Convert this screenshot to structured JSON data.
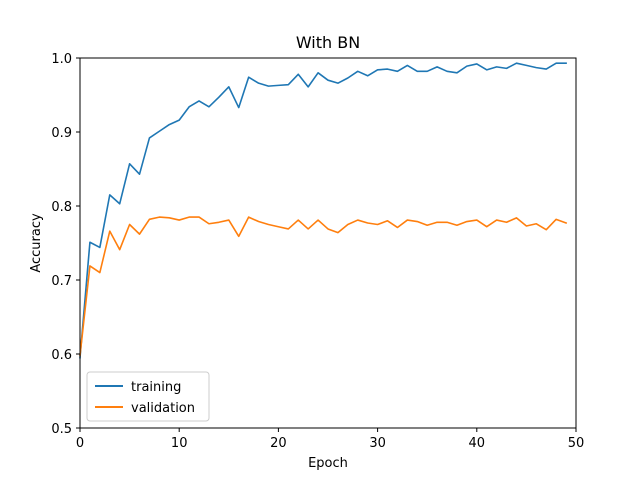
{
  "chart_data": {
    "type": "line",
    "title": "With BN",
    "xlabel": "Epoch",
    "ylabel": "Accuracy",
    "xlim": [
      0,
      50
    ],
    "ylim": [
      0.5,
      1.0
    ],
    "xticks": [
      0,
      10,
      20,
      30,
      40,
      50
    ],
    "yticks": [
      "0.5",
      "0.6",
      "0.7",
      "0.8",
      "0.9",
      "1.0"
    ],
    "grid": false,
    "legend_position": "lower-left",
    "x": [
      0,
      1,
      2,
      3,
      4,
      5,
      6,
      7,
      8,
      9,
      10,
      11,
      12,
      13,
      14,
      15,
      16,
      17,
      18,
      19,
      20,
      21,
      22,
      23,
      24,
      25,
      26,
      27,
      28,
      29,
      30,
      31,
      32,
      33,
      34,
      35,
      36,
      37,
      38,
      39,
      40,
      41,
      42,
      43,
      44,
      45,
      46,
      47,
      48,
      49
    ],
    "series": [
      {
        "name": "training",
        "color": "#1f77b4",
        "values": [
          0.595,
          0.751,
          0.744,
          0.815,
          0.803,
          0.857,
          0.843,
          0.892,
          0.901,
          0.91,
          0.916,
          0.934,
          0.942,
          0.934,
          0.947,
          0.961,
          0.933,
          0.974,
          0.966,
          0.962,
          0.963,
          0.964,
          0.978,
          0.961,
          0.98,
          0.97,
          0.966,
          0.973,
          0.982,
          0.976,
          0.984,
          0.985,
          0.982,
          0.99,
          0.982,
          0.982,
          0.988,
          0.982,
          0.98,
          0.989,
          0.992,
          0.984,
          0.988,
          0.986,
          0.993,
          0.99,
          0.987,
          0.985,
          0.993,
          0.993
        ]
      },
      {
        "name": "validation",
        "color": "#ff7f0e",
        "values": [
          0.598,
          0.719,
          0.71,
          0.766,
          0.741,
          0.775,
          0.762,
          0.782,
          0.785,
          0.784,
          0.781,
          0.785,
          0.785,
          0.776,
          0.778,
          0.781,
          0.759,
          0.785,
          0.779,
          0.775,
          0.772,
          0.769,
          0.781,
          0.769,
          0.781,
          0.769,
          0.764,
          0.775,
          0.781,
          0.777,
          0.775,
          0.78,
          0.771,
          0.781,
          0.779,
          0.774,
          0.778,
          0.778,
          0.774,
          0.779,
          0.781,
          0.772,
          0.781,
          0.778,
          0.784,
          0.773,
          0.776,
          0.768,
          0.782,
          0.777
        ]
      }
    ]
  }
}
